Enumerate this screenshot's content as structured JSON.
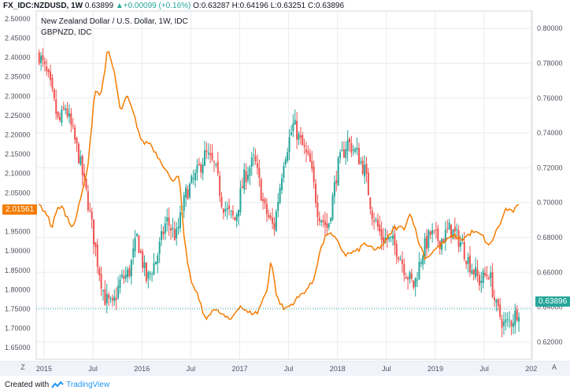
{
  "header": {
    "symbol": "FX_IDC:NZDUSD, 1W",
    "last": "0.63899",
    "arrow": "▲",
    "change": "+0.00099 (+0.16%)",
    "open": "O:0.63287",
    "high": "H:0.64196",
    "low": "L:0.63251",
    "close": "C:0.63896"
  },
  "legend": {
    "main": "New Zealand Dollar / U.S. Dollar, 1W, IDC",
    "overlay": "GBPNZD, IDC"
  },
  "footer": {
    "created_with": "Created with",
    "brand": "TradingView"
  },
  "buttons": {
    "zoom": "Z",
    "auto": "A"
  },
  "colors": {
    "up": "#26a69a",
    "down": "#ef5350",
    "overlay": "#f57c00",
    "left_tag": "#f57c00",
    "right_tag": "#26a69a",
    "grid": "#e9ebef"
  },
  "chart_data": {
    "type": "candlestick",
    "title": "New Zealand Dollar / U.S. Dollar, 1W, IDC",
    "x_ticks": [
      "2015",
      "Jul",
      "2016",
      "Jul",
      "2017",
      "Jul",
      "2018",
      "Jul",
      "2019",
      "Jul",
      "202"
    ],
    "right_axis": {
      "ylim": [
        0.61,
        0.81
      ],
      "ticks": [
        "0.80000",
        "0.78000",
        "0.76000",
        "0.74000",
        "0.72000",
        "0.70000",
        "0.68000",
        "0.66000",
        "0.64000",
        "0.62000"
      ]
    },
    "left_axis": {
      "ylim": [
        1.62,
        2.52
      ],
      "ticks": [
        "2.50000",
        "2.45000",
        "2.40000",
        "2.35000",
        "2.30000",
        "2.25000",
        "2.20000",
        "2.15000",
        "2.10000",
        "2.05000",
        "2.00000",
        "1.95000",
        "1.90000",
        "1.85000",
        "1.80000",
        "1.75000",
        "1.70000",
        "1.65000"
      ]
    },
    "last_left_label": "2.01561",
    "last_right_label": "0.63896",
    "series": [
      {
        "name": "NZDUSD",
        "axis": "right",
        "style": "candles",
        "anchors": [
          [
            2014.95,
            0.785
          ],
          [
            2015.05,
            0.77
          ],
          [
            2015.15,
            0.745
          ],
          [
            2015.22,
            0.755
          ],
          [
            2015.35,
            0.728
          ],
          [
            2015.45,
            0.7
          ],
          [
            2015.55,
            0.665
          ],
          [
            2015.62,
            0.645
          ],
          [
            2015.7,
            0.64
          ],
          [
            2015.78,
            0.655
          ],
          [
            2015.87,
            0.66
          ],
          [
            2015.95,
            0.68
          ],
          [
            2016.05,
            0.655
          ],
          [
            2016.15,
            0.668
          ],
          [
            2016.25,
            0.69
          ],
          [
            2016.35,
            0.68
          ],
          [
            2016.45,
            0.705
          ],
          [
            2016.55,
            0.715
          ],
          [
            2016.65,
            0.728
          ],
          [
            2016.75,
            0.72
          ],
          [
            2016.82,
            0.7
          ],
          [
            2016.87,
            0.695
          ],
          [
            2016.95,
            0.69
          ],
          [
            2017.05,
            0.715
          ],
          [
            2017.15,
            0.725
          ],
          [
            2017.25,
            0.697
          ],
          [
            2017.35,
            0.685
          ],
          [
            2017.45,
            0.725
          ],
          [
            2017.55,
            0.745
          ],
          [
            2017.62,
            0.735
          ],
          [
            2017.72,
            0.722
          ],
          [
            2017.8,
            0.695
          ],
          [
            2017.9,
            0.685
          ],
          [
            2018.0,
            0.72
          ],
          [
            2018.1,
            0.735
          ],
          [
            2018.2,
            0.728
          ],
          [
            2018.28,
            0.718
          ],
          [
            2018.35,
            0.695
          ],
          [
            2018.45,
            0.68
          ],
          [
            2018.55,
            0.678
          ],
          [
            2018.62,
            0.672
          ],
          [
            2018.7,
            0.66
          ],
          [
            2018.78,
            0.652
          ],
          [
            2018.87,
            0.672
          ],
          [
            2018.95,
            0.682
          ],
          [
            2019.05,
            0.678
          ],
          [
            2019.15,
            0.685
          ],
          [
            2019.25,
            0.678
          ],
          [
            2019.35,
            0.665
          ],
          [
            2019.45,
            0.655
          ],
          [
            2019.55,
            0.66
          ],
          [
            2019.62,
            0.64
          ],
          [
            2019.7,
            0.63
          ],
          [
            2019.78,
            0.632
          ],
          [
            2019.85,
            0.639
          ]
        ]
      },
      {
        "name": "GBPNZD",
        "axis": "left",
        "style": "line",
        "anchors": [
          [
            2014.95,
            2.02
          ],
          [
            2015.02,
            2.0
          ],
          [
            2015.08,
            1.96
          ],
          [
            2015.12,
            2.0
          ],
          [
            2015.18,
            2.02
          ],
          [
            2015.22,
            1.99
          ],
          [
            2015.3,
            1.96
          ],
          [
            2015.38,
            2.04
          ],
          [
            2015.45,
            2.12
          ],
          [
            2015.52,
            2.32
          ],
          [
            2015.58,
            2.3
          ],
          [
            2015.65,
            2.42
          ],
          [
            2015.72,
            2.36
          ],
          [
            2015.78,
            2.26
          ],
          [
            2015.85,
            2.3
          ],
          [
            2015.92,
            2.25
          ],
          [
            2016.0,
            2.18
          ],
          [
            2016.08,
            2.18
          ],
          [
            2016.15,
            2.15
          ],
          [
            2016.25,
            2.11
          ],
          [
            2016.3,
            2.08
          ],
          [
            2016.38,
            2.1
          ],
          [
            2016.43,
            1.94
          ],
          [
            2016.47,
            1.86
          ],
          [
            2016.52,
            1.81
          ],
          [
            2016.58,
            1.78
          ],
          [
            2016.65,
            1.72
          ],
          [
            2016.72,
            1.75
          ],
          [
            2016.8,
            1.74
          ],
          [
            2016.9,
            1.72
          ],
          [
            2017.0,
            1.76
          ],
          [
            2017.08,
            1.74
          ],
          [
            2017.18,
            1.74
          ],
          [
            2017.28,
            1.8
          ],
          [
            2017.32,
            1.88
          ],
          [
            2017.38,
            1.78
          ],
          [
            2017.45,
            1.75
          ],
          [
            2017.52,
            1.76
          ],
          [
            2017.6,
            1.78
          ],
          [
            2017.68,
            1.8
          ],
          [
            2017.75,
            1.82
          ],
          [
            2017.82,
            1.9
          ],
          [
            2017.9,
            1.95
          ],
          [
            2017.98,
            1.93
          ],
          [
            2018.08,
            1.89
          ],
          [
            2018.2,
            1.9
          ],
          [
            2018.28,
            1.92
          ],
          [
            2018.38,
            1.9
          ],
          [
            2018.48,
            1.92
          ],
          [
            2018.58,
            1.96
          ],
          [
            2018.68,
            1.96
          ],
          [
            2018.75,
            2.0
          ],
          [
            2018.82,
            1.93
          ],
          [
            2018.9,
            1.88
          ],
          [
            2018.98,
            1.9
          ],
          [
            2019.08,
            1.92
          ],
          [
            2019.18,
            1.94
          ],
          [
            2019.28,
            1.93
          ],
          [
            2019.38,
            1.95
          ],
          [
            2019.48,
            1.94
          ],
          [
            2019.55,
            1.91
          ],
          [
            2019.62,
            1.95
          ],
          [
            2019.68,
            1.98
          ],
          [
            2019.72,
            2.01
          ],
          [
            2019.78,
            2.0
          ],
          [
            2019.85,
            2.016
          ]
        ]
      }
    ]
  }
}
